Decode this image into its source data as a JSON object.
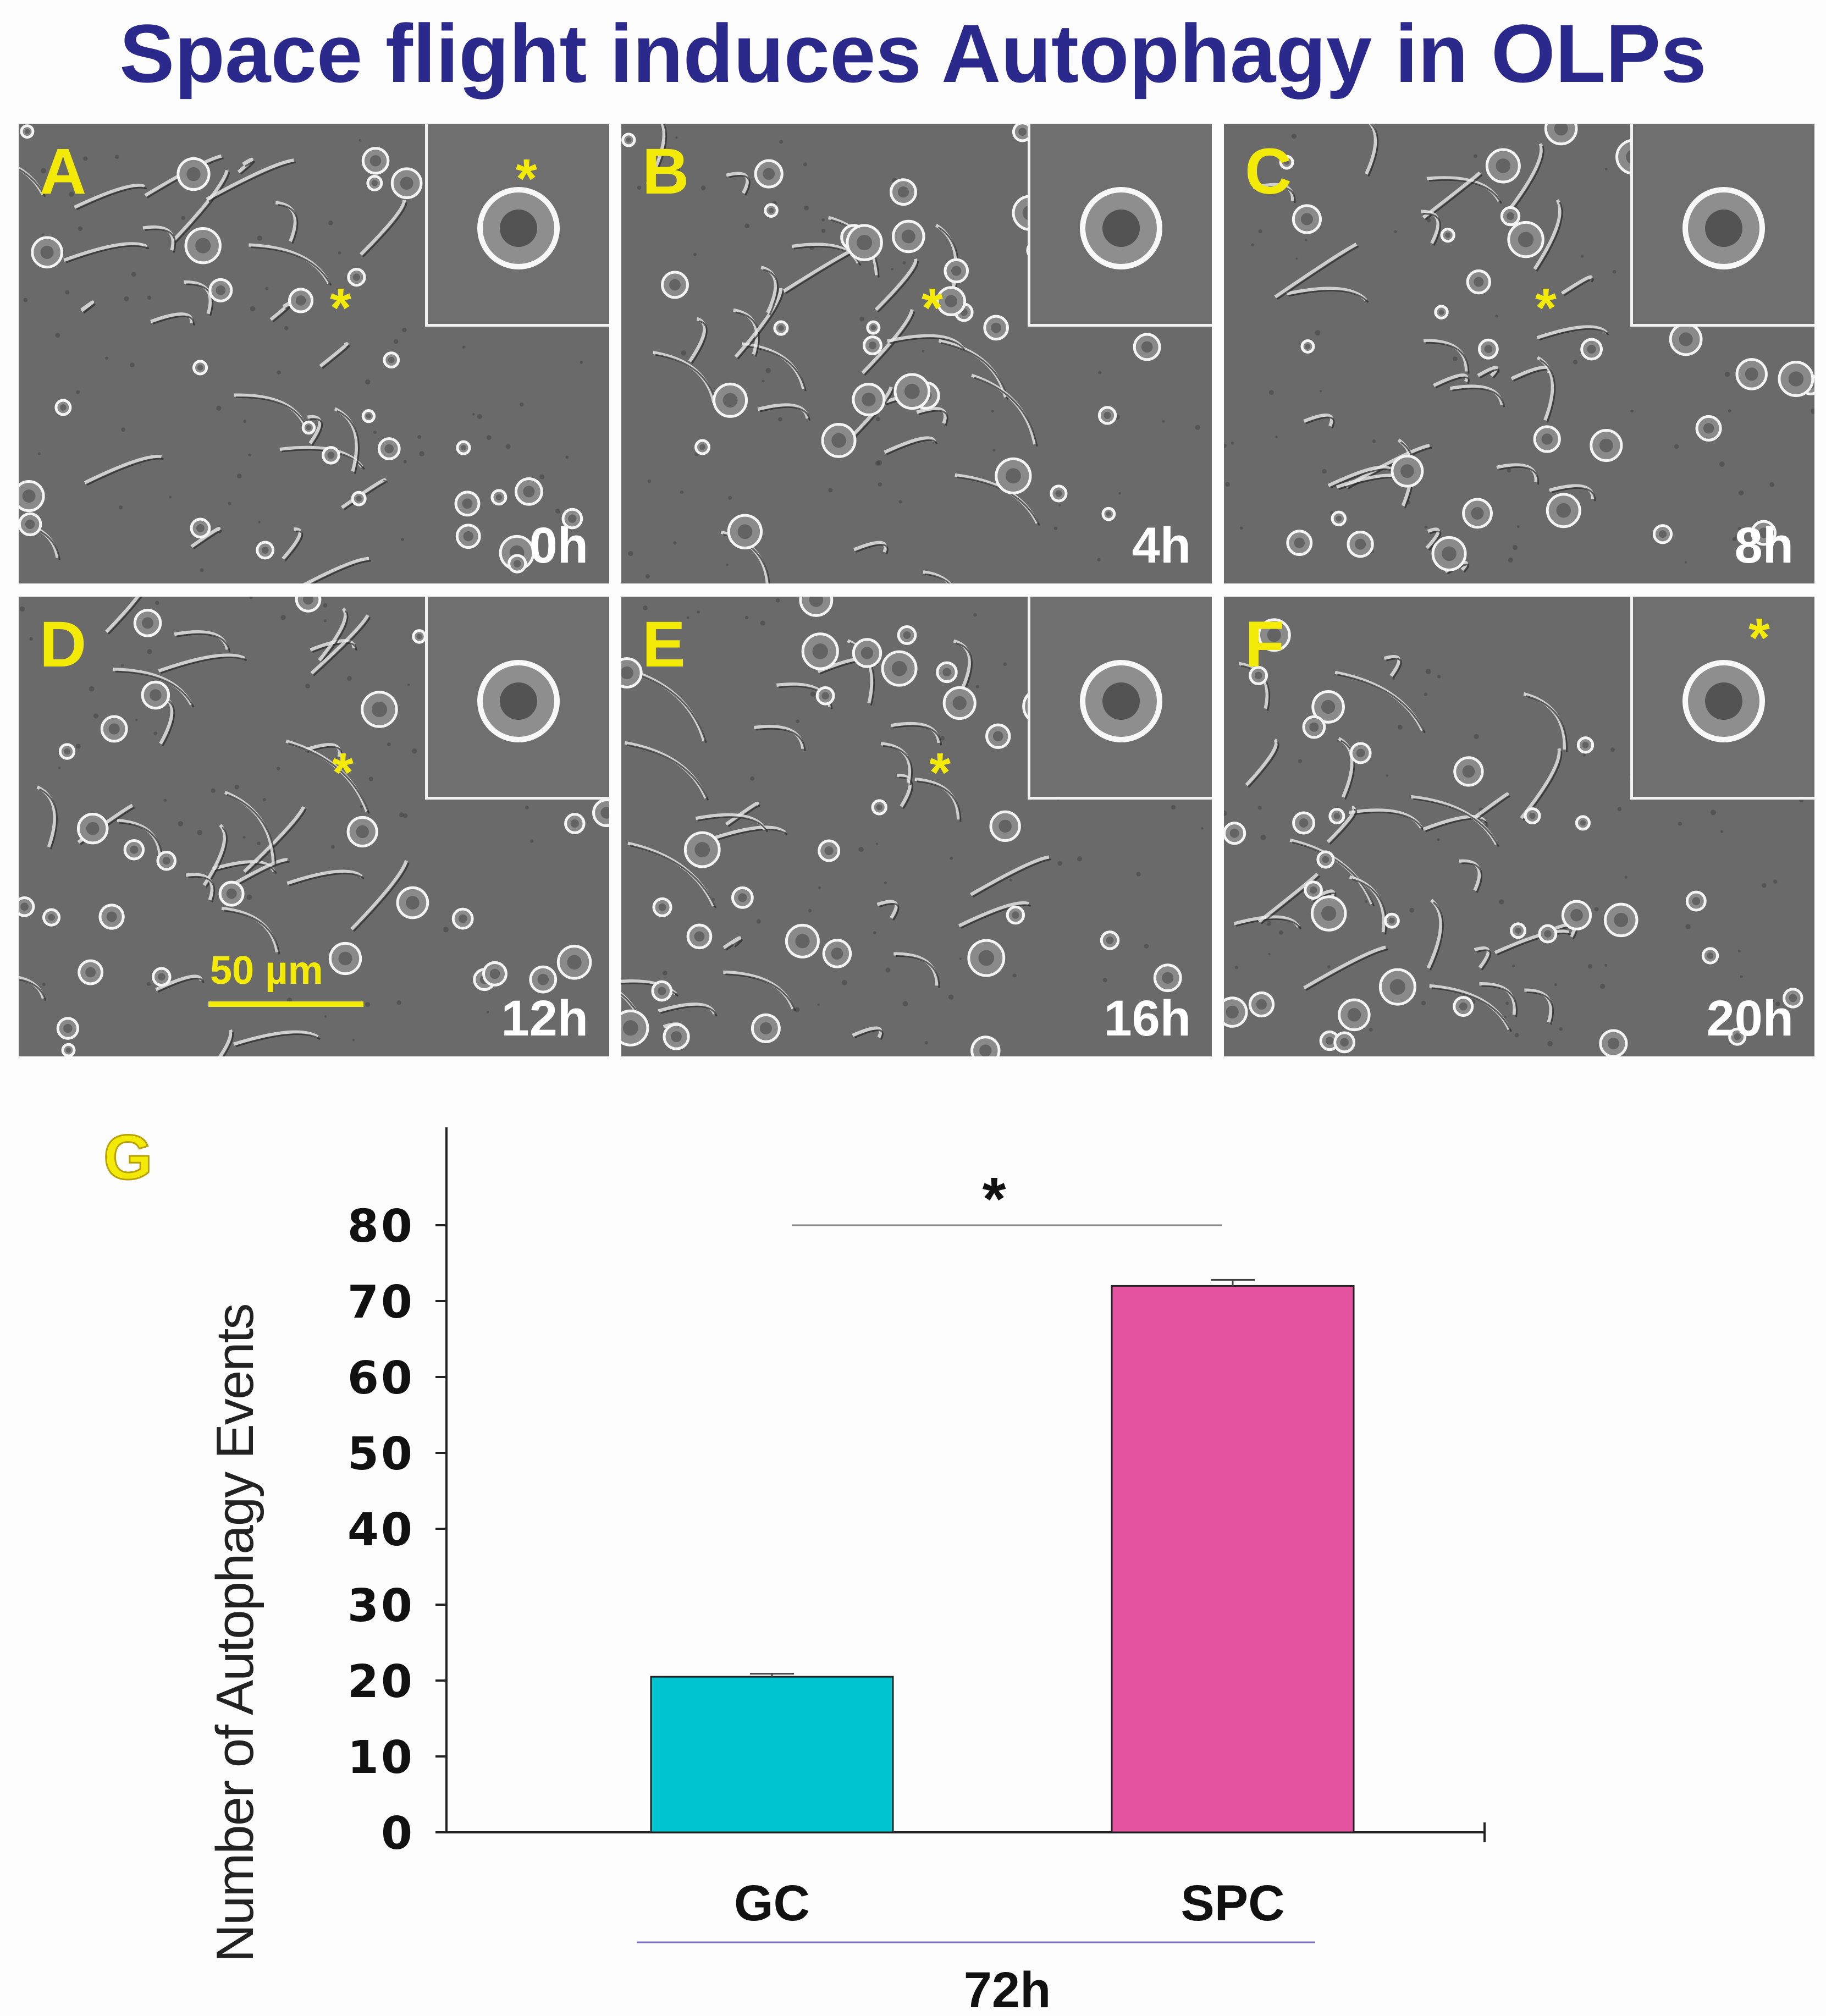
{
  "title": "Space flight induces Autophagy in OLPs",
  "panels": [
    {
      "letter": "A",
      "time": "0h",
      "star": "*",
      "inset_star": "*"
    },
    {
      "letter": "B",
      "time": "4h",
      "star": "*"
    },
    {
      "letter": "C",
      "time": "8h",
      "star": "*"
    },
    {
      "letter": "D",
      "time": "12h",
      "star": "*",
      "scale_bar": "50 µm"
    },
    {
      "letter": "E",
      "time": "16h",
      "star": "*"
    },
    {
      "letter": "F",
      "time": "20h",
      "inset_star": "*"
    }
  ],
  "colors": {
    "title": "#2b2a8c",
    "panel_label": "#f4ea08",
    "gc_bar": "#00c4cf",
    "spc_bar": "#e3539f"
  },
  "chart_data": {
    "type": "bar",
    "panel_label": "G",
    "categories": [
      "GC",
      "SPC"
    ],
    "values": [
      20.5,
      72
    ],
    "errors": [
      0.4,
      0.8
    ],
    "bar_colors": [
      "#00c4cf",
      "#e3539f"
    ],
    "ylabel": "Number of Autophagy Events",
    "xlabel": "72h",
    "ylim": [
      0,
      90
    ],
    "yticks": [
      0,
      10,
      20,
      30,
      40,
      50,
      60,
      70,
      80
    ],
    "significance": "*"
  }
}
